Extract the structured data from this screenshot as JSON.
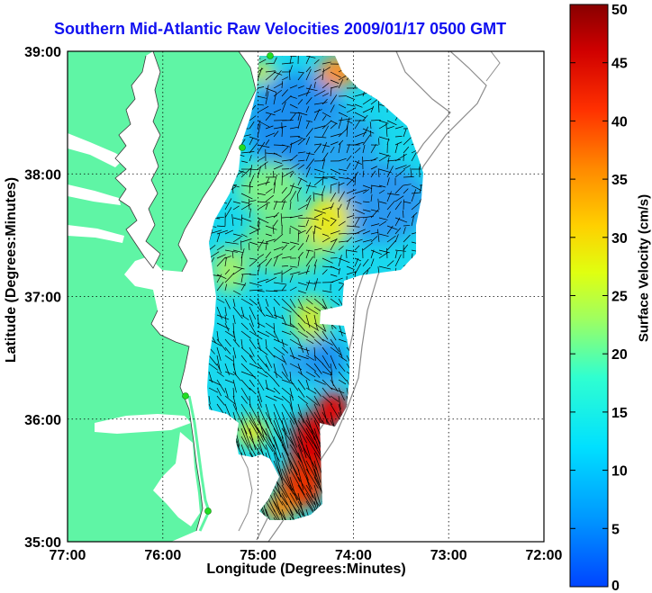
{
  "title": "Southern Mid-Atlantic Raw Velocities 2009/01/17 0500 GMT",
  "axes": {
    "xlabel": "Longitude (Degrees:Minutes)",
    "ylabel": "Latitude (Degrees:Minutes)",
    "x_ticks": [
      "77:00",
      "76:00",
      "75:00",
      "74:00",
      "73:00",
      "72:00"
    ],
    "y_ticks": [
      "39:00",
      "38:00",
      "37:00",
      "36:00",
      "35:00"
    ],
    "x_range": [
      -77,
      -72
    ],
    "y_range": [
      35,
      39
    ],
    "grid": true
  },
  "colorbar": {
    "label": "Surface Velocity (cm/s)",
    "ticks": [
      "0",
      "5",
      "10",
      "15",
      "20",
      "25",
      "30",
      "35",
      "40",
      "45",
      "50"
    ],
    "range": [
      0,
      50
    ],
    "colormap": "jet"
  },
  "colors": {
    "title": "#1010f0",
    "land": "#5ff5a5",
    "bathymetry_contour": "#8c8c8c",
    "grid": "#000000",
    "station_marker": "#22dd22"
  }
}
